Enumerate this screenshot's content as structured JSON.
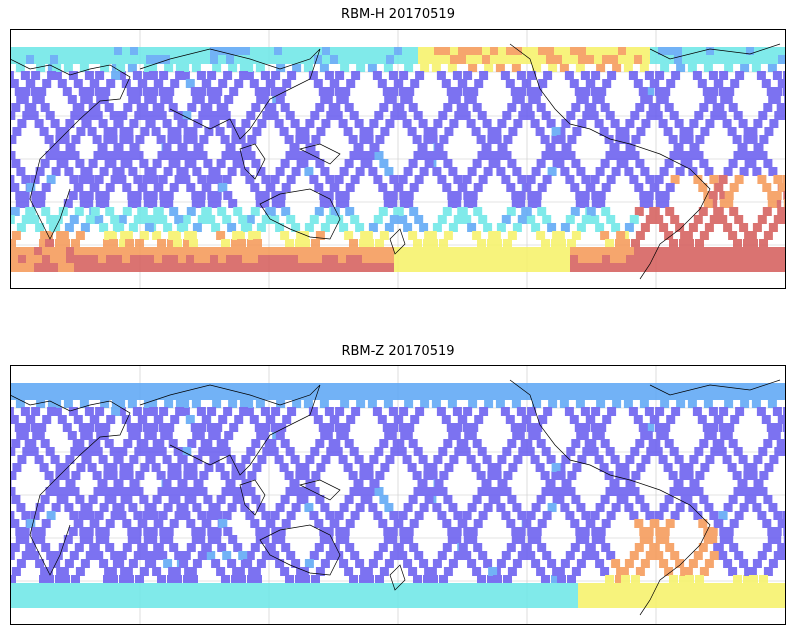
{
  "panels": [
    {
      "title": "RBM-H 20170519",
      "profile": "high"
    },
    {
      "title": "RBM-Z 20170519",
      "profile": "low"
    }
  ],
  "colormap": [
    "#6a5ff0",
    "#5fa8f5",
    "#6fe8e8",
    "#f6f26a",
    "#f59a5a",
    "#d6605e"
  ],
  "coast_color": "#000000",
  "grid_color": "#c8c8c8"
}
